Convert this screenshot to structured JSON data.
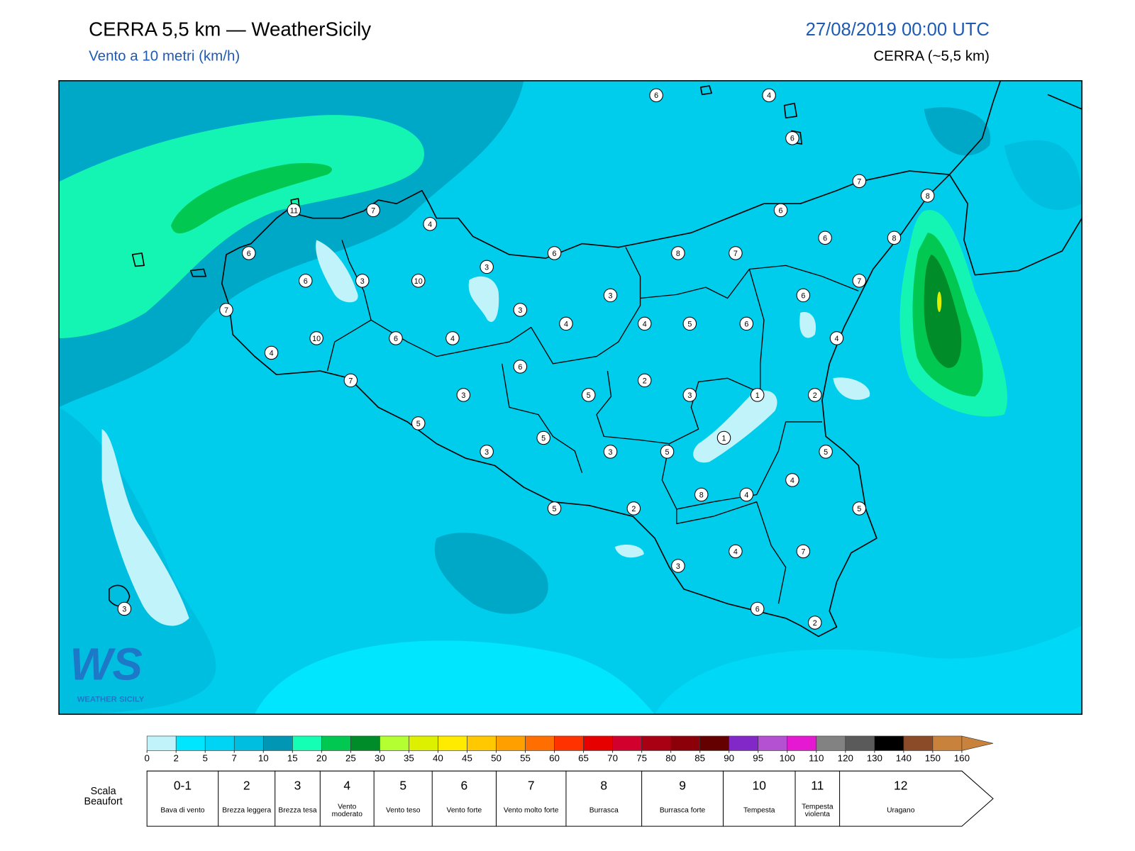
{
  "header": {
    "title": "CERRA 5,5 km — WeatherSicily",
    "subtitle": "Vento a 10 metri (km/h)",
    "datetime": "27/08/2019 00:00 UTC",
    "model": "CERRA (~5,5 km)"
  },
  "stations": [
    6,
    4,
    6,
    7,
    8,
    11,
    7,
    4,
    6,
    6,
    8,
    6,
    6,
    8,
    7,
    3,
    6,
    3,
    10,
    7,
    3,
    6,
    7,
    3,
    4,
    4,
    5,
    6,
    10,
    6,
    4,
    4,
    4,
    6,
    7,
    2,
    3,
    5,
    3,
    1,
    2,
    5,
    5,
    1,
    3,
    3,
    5,
    5,
    4,
    8,
    4,
    5,
    2,
    5,
    4,
    7,
    3,
    3,
    6,
    2
  ],
  "colorbar": {
    "ticks": [
      0,
      2,
      5,
      7,
      10,
      15,
      20,
      25,
      30,
      35,
      40,
      45,
      50,
      55,
      60,
      65,
      70,
      75,
      80,
      85,
      90,
      95,
      100,
      110,
      120,
      130,
      140,
      150,
      160
    ],
    "colors": [
      "#c0f4fa",
      "#00e6ff",
      "#00d4f5",
      "#00bee0",
      "#0096b4",
      "#14ffb4",
      "#00c850",
      "#008c28",
      "#b4ff32",
      "#dcf000",
      "#ffeb00",
      "#ffc800",
      "#ffa000",
      "#ff6e00",
      "#ff3200",
      "#e60000",
      "#d2002d",
      "#aa0014",
      "#8c000a",
      "#640000",
      "#8228c8",
      "#b450d2",
      "#e619d2",
      "#828282",
      "#5a5a5a",
      "#000000",
      "#8c4b28",
      "#c8823c"
    ]
  },
  "beaufort": {
    "label": "Scala Beaufort",
    "scale": [
      {
        "force": "0-1",
        "name": "Bava di vento"
      },
      {
        "force": 2,
        "name": "Brezza leggera"
      },
      {
        "force": 3,
        "name": "Brezza tesa"
      },
      {
        "force": 4,
        "name": "Vento moderato"
      },
      {
        "force": 5,
        "name": "Vento teso"
      },
      {
        "force": 6,
        "name": "Vento forte"
      },
      {
        "force": 7,
        "name": "Vento molto forte"
      },
      {
        "force": 8,
        "name": "Burrasca"
      },
      {
        "force": 9,
        "name": "Burrasca forte"
      },
      {
        "force": 10,
        "name": "Tempesta"
      },
      {
        "force": 11,
        "name": "Tempesta violenta"
      },
      {
        "force": 12,
        "name": "Uragano"
      }
    ]
  },
  "logo": {
    "mark": "WS",
    "text": "WEATHER SICILY"
  }
}
